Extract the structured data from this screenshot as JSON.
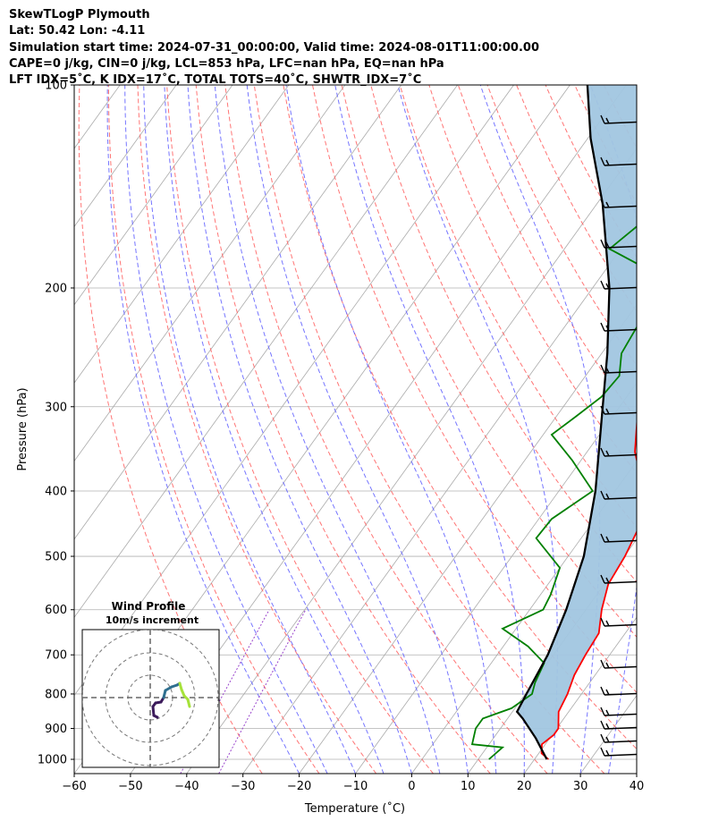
{
  "header": {
    "line1": "SkewTLogP Plymouth",
    "line2": "Lat: 50.42   Lon: -4.11",
    "line3": "Simulation start time: 2024-07-31_00:00:00, Valid time: 2024-08-01T11:00:00.00",
    "line4": "CAPE=0 j/kg, CIN=0 j/kg, LCL=853 hPa, LFC=nan hPa, EQ=nan hPa",
    "line5": "LFT IDX=5˚C, K IDX=17˚C, TOTAL TOTS=40˚C, SHWTR_IDX=7˚C"
  },
  "colors": {
    "temperature": "#ff0000",
    "dewpoint": "#008000",
    "parcel": "#000000",
    "shading": "#a1c6e0",
    "dry_adiabats": "#ff6666",
    "moist_adiabats": "#6666ff",
    "mixing_ratio": "#9944cc",
    "isotherms": "#aaaaaa"
  },
  "chart_data": {
    "type": "line",
    "xlabel": "Temperature (˚C)",
    "ylabel": "Pressure (hPa)",
    "xlim": [
      -60,
      40
    ],
    "ylim": [
      1050,
      100
    ],
    "yscale": "log",
    "grid": true,
    "x_ticks": [
      "−60",
      "−50",
      "−40",
      "−30",
      "−20",
      "−10",
      "0",
      "10",
      "20",
      "30",
      "40"
    ],
    "x_tick_values": [
      -60,
      -50,
      -40,
      -30,
      -20,
      -10,
      0,
      10,
      20,
      30,
      40
    ],
    "y_ticks": [
      "100",
      "200",
      "300",
      "400",
      "500",
      "600",
      "700",
      "800",
      "900",
      "1000"
    ],
    "y_tick_values": [
      100,
      200,
      300,
      400,
      500,
      600,
      700,
      800,
      900,
      1000
    ],
    "temperature_x": [
      [
        1000,
        22.5
      ],
      [
        980,
        20.5
      ],
      [
        950,
        19.4
      ],
      [
        920,
        20.3
      ],
      [
        900,
        20.3
      ],
      [
        850,
        18.2
      ],
      [
        800,
        17.5
      ],
      [
        750,
        16.3
      ],
      [
        700,
        15.7
      ],
      [
        650,
        15.3
      ],
      [
        600,
        12.8
      ],
      [
        550,
        10.7
      ],
      [
        500,
        10.1
      ],
      [
        450,
        8.8
      ],
      [
        400,
        5.1
      ],
      [
        350,
        -1.5
      ],
      [
        300,
        -6.7
      ],
      [
        270,
        -10.0
      ],
      [
        250,
        -12.2
      ],
      [
        230,
        -13.5
      ],
      [
        220,
        -11.8
      ],
      [
        200,
        -6.1
      ],
      [
        180,
        -2.2
      ],
      [
        160,
        1.5
      ],
      [
        150,
        3.0
      ],
      [
        140,
        5.6
      ],
      [
        130,
        8.4
      ],
      [
        120,
        11.5
      ],
      [
        110,
        13.8
      ],
      [
        100,
        17.5
      ]
    ],
    "dewpoint_x": [
      [
        1000,
        11.9
      ],
      [
        960,
        12.8
      ],
      [
        950,
        7.0
      ],
      [
        900,
        5.6
      ],
      [
        870,
        5.6
      ],
      [
        840,
        9.4
      ],
      [
        800,
        11.2
      ],
      [
        770,
        10.3
      ],
      [
        720,
        9.4
      ],
      [
        680,
        4.4
      ],
      [
        640,
        -2.4
      ],
      [
        600,
        2.4
      ],
      [
        570,
        1.8
      ],
      [
        520,
        0.0
      ],
      [
        470,
        -8.0
      ],
      [
        440,
        -7.7
      ],
      [
        400,
        -4.0
      ],
      [
        360,
        -11.6
      ],
      [
        330,
        -18.5
      ],
      [
        310,
        -16.5
      ],
      [
        290,
        -14.5
      ],
      [
        270,
        -14.0
      ],
      [
        250,
        -16.5
      ],
      [
        230,
        -17.1
      ],
      [
        210,
        -17.5
      ],
      [
        200,
        -19.0
      ],
      [
        185,
        -24.5
      ],
      [
        175,
        -32.0
      ],
      [
        150,
        -28.0
      ],
      [
        130,
        -22.0
      ],
      [
        120,
        -19.0
      ],
      [
        110,
        -15.5
      ],
      [
        100,
        -13.0
      ]
    ],
    "parcel_x": [
      [
        1000,
        22.2
      ],
      [
        930,
        17.5
      ],
      [
        870,
        12.7
      ],
      [
        850,
        10.8
      ],
      [
        800,
        10.2
      ],
      [
        700,
        9.0
      ],
      [
        600,
        6.5
      ],
      [
        500,
        2.8
      ],
      [
        400,
        -3.5
      ],
      [
        300,
        -13.0
      ],
      [
        250,
        -19.0
      ],
      [
        200,
        -27.0
      ],
      [
        150,
        -39.0
      ],
      [
        120,
        -49.5
      ],
      [
        100,
        -56.9
      ]
    ],
    "wind_profile": {
      "title": "Wind Profile",
      "subtitle": "10m/s increment"
    }
  }
}
